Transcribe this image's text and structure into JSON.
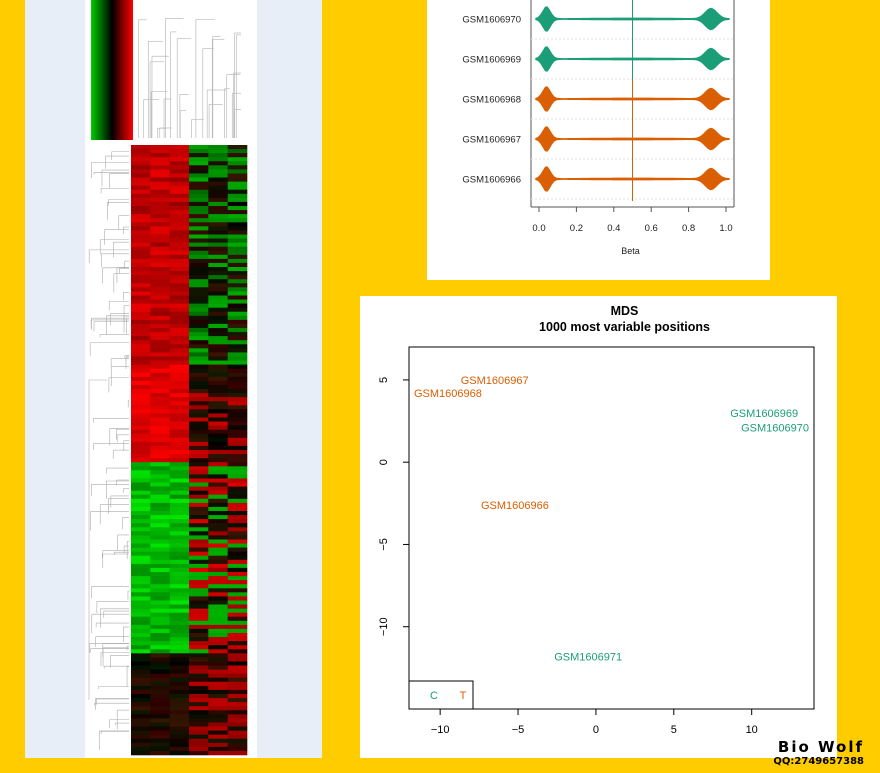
{
  "colors": {
    "background": "#FFCC00",
    "control": "#1B9E77",
    "treatment": "#D95F02",
    "heat_high": "#FF0000",
    "heat_mid": "#000000",
    "heat_low": "#00CC00"
  },
  "watermark": {
    "line1": "Bio Wolf",
    "line2": "QQ:2749657388"
  },
  "chart_data": [
    {
      "type": "heatmap",
      "title": "",
      "color_scale": [
        "green",
        "black",
        "red"
      ],
      "row_dendrogram": true,
      "column_dendrogram": true,
      "n_columns": 6
    },
    {
      "type": "violin",
      "orientation": "horizontal",
      "xlabel": "Beta",
      "xlim": [
        0,
        1.0
      ],
      "xticks": [
        "0.0",
        "0.2",
        "0.4",
        "0.6",
        "0.8",
        "1.0"
      ],
      "reference_lines": [
        0.5
      ],
      "series": [
        {
          "name": "GSM1606970",
          "group": "C",
          "modes": [
            0.04,
            0.92
          ]
        },
        {
          "name": "GSM1606969",
          "group": "C",
          "modes": [
            0.04,
            0.92
          ]
        },
        {
          "name": "GSM1606968",
          "group": "T",
          "modes": [
            0.04,
            0.92
          ]
        },
        {
          "name": "GSM1606967",
          "group": "T",
          "modes": [
            0.04,
            0.92
          ]
        },
        {
          "name": "GSM1606966",
          "group": "T",
          "modes": [
            0.04,
            0.92
          ]
        }
      ]
    },
    {
      "type": "scatter",
      "title": "MDS",
      "subtitle": "1000 most variable positions",
      "xlim": [
        -12,
        14
      ],
      "ylim": [
        -15,
        7
      ],
      "xticks": [
        -10,
        -5,
        0,
        5,
        10
      ],
      "yticks": [
        5,
        0,
        -5,
        -10
      ],
      "points": [
        {
          "label": "GSM1606967",
          "group": "T",
          "x": -6.5,
          "y": 5.0
        },
        {
          "label": "GSM1606968",
          "group": "T",
          "x": -9.5,
          "y": 4.2
        },
        {
          "label": "GSM1606969",
          "group": "C",
          "x": 10.8,
          "y": 3.0
        },
        {
          "label": "GSM1606970",
          "group": "C",
          "x": 11.5,
          "y": 2.1
        },
        {
          "label": "GSM1606966",
          "group": "T",
          "x": -5.2,
          "y": -2.6
        },
        {
          "label": "GSM1606971",
          "group": "C",
          "x": -0.5,
          "y": -11.8
        }
      ],
      "legend": {
        "position": "bottom-left",
        "entries": [
          {
            "label": "C",
            "group": "C"
          },
          {
            "label": "T",
            "group": "T"
          }
        ]
      }
    }
  ]
}
